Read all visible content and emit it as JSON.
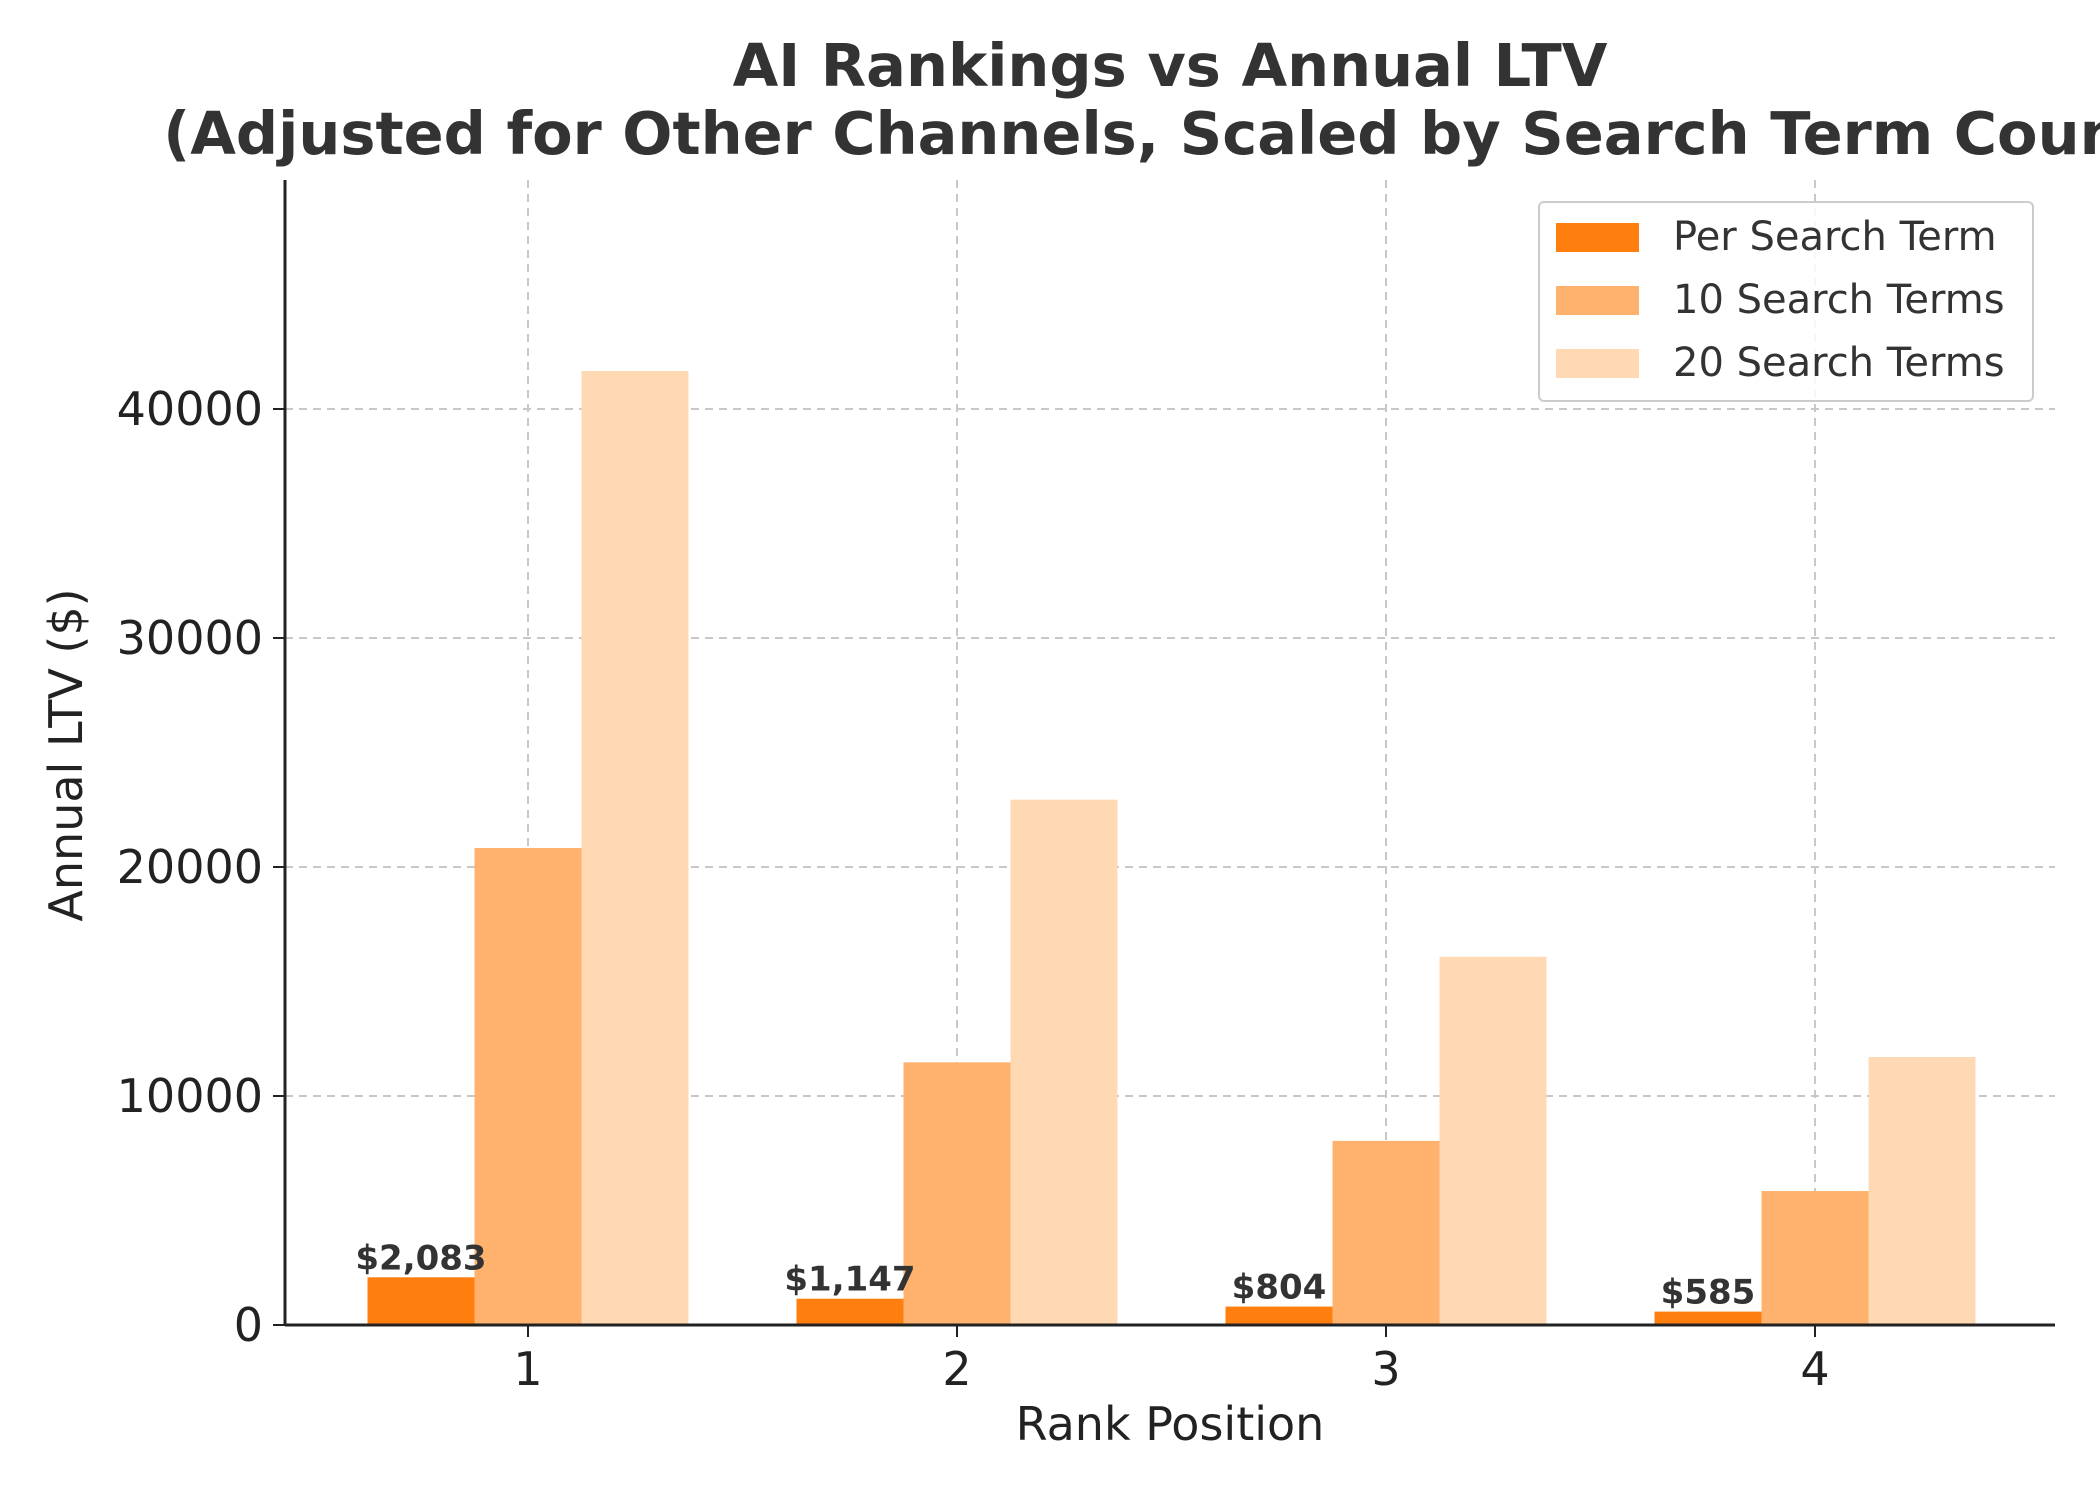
{
  "chart_data": {
    "type": "bar",
    "title": "AI Rankings vs Annual LTV",
    "subtitle": "(Adjusted for Other Channels, Scaled by Search Term Count)",
    "xlabel": "Rank Position",
    "ylabel": "Annual LTV ($)",
    "categories": [
      "1",
      "2",
      "3",
      "4"
    ],
    "ylim": [
      0,
      50000
    ],
    "yticks": [
      0,
      10000,
      20000,
      30000,
      40000
    ],
    "grid": true,
    "legend_position": "top-right",
    "series": [
      {
        "name": "Per Search Term",
        "color": "#ff7f0e",
        "values": [
          2083,
          1147,
          804,
          585
        ]
      },
      {
        "name": "10 Search Terms",
        "color": "#ffb26e",
        "values": [
          20830,
          11470,
          8040,
          5850
        ]
      },
      {
        "name": "20 Search Terms",
        "color": "#ffd8b4",
        "values": [
          41660,
          22940,
          16080,
          11700
        ]
      }
    ],
    "data_labels": [
      "$2,083",
      "$1,147",
      "$804",
      "$585"
    ]
  }
}
